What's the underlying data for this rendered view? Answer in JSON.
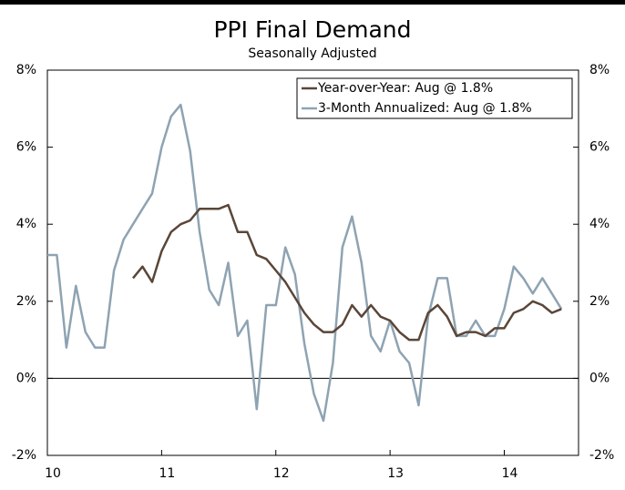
{
  "chart_data": {
    "type": "line",
    "title": "PPI Final Demand",
    "subtitle": "Seasonally Adjusted",
    "x": [
      10,
      10.083,
      10.167,
      10.25,
      10.333,
      10.417,
      10.5,
      10.583,
      10.667,
      10.75,
      10.833,
      10.917,
      11,
      11.083,
      11.167,
      11.25,
      11.333,
      11.417,
      11.5,
      11.583,
      11.667,
      11.75,
      11.833,
      11.917,
      12,
      12.083,
      12.167,
      12.25,
      12.333,
      12.417,
      12.5,
      12.583,
      12.667,
      12.75,
      12.833,
      12.917,
      13,
      13.083,
      13.167,
      13.25,
      13.333,
      13.417,
      13.5,
      13.583,
      13.667,
      13.75,
      13.833,
      13.917,
      14,
      14.083,
      14.167,
      14.25,
      14.333,
      14.417,
      14.5
    ],
    "series": [
      {
        "name": "Year-over-Year: Aug @ 1.8%",
        "color": "#5a4638",
        "values": [
          null,
          null,
          null,
          null,
          null,
          null,
          null,
          null,
          null,
          2.6,
          2.9,
          2.5,
          3.3,
          3.8,
          4.0,
          4.1,
          4.4,
          4.4,
          4.4,
          4.5,
          3.8,
          3.8,
          3.2,
          3.1,
          2.8,
          2.5,
          2.1,
          1.7,
          1.4,
          1.2,
          1.2,
          1.4,
          1.9,
          1.6,
          1.9,
          1.6,
          1.5,
          1.2,
          1.0,
          1.0,
          1.7,
          1.9,
          1.6,
          1.1,
          1.2,
          1.2,
          1.1,
          1.3,
          1.3,
          1.7,
          1.8,
          2.0,
          1.9,
          1.7,
          1.8
        ]
      },
      {
        "name": "3-Month Annualized: Aug @ 1.8%",
        "color": "#8ea3b2",
        "values": [
          3.2,
          3.2,
          0.8,
          2.4,
          1.2,
          0.8,
          0.8,
          2.8,
          3.6,
          4.0,
          4.4,
          4.8,
          6.0,
          6.8,
          7.1,
          5.9,
          3.8,
          2.3,
          1.9,
          3.0,
          1.1,
          1.5,
          -0.8,
          1.9,
          1.9,
          3.4,
          2.7,
          0.9,
          -0.4,
          -1.1,
          0.4,
          3.4,
          4.2,
          3.0,
          1.1,
          0.7,
          1.5,
          0.7,
          0.4,
          -0.7,
          1.6,
          2.6,
          2.6,
          1.1,
          1.1,
          1.5,
          1.1,
          1.1,
          1.8,
          2.9,
          2.6,
          2.2,
          2.6,
          2.2,
          1.8
        ]
      }
    ],
    "xlim": [
      10,
      14.65
    ],
    "xticks": [
      10,
      11,
      12,
      13,
      14
    ],
    "ylim": [
      -2,
      8
    ],
    "yticks": [
      {
        "value": -2,
        "label": "-2%"
      },
      {
        "value": 0,
        "label": "0%"
      },
      {
        "value": 2,
        "label": "2%"
      },
      {
        "value": 4,
        "label": "4%"
      },
      {
        "value": 6,
        "label": "6%"
      },
      {
        "value": 8,
        "label": "8%"
      }
    ],
    "legend": "upper right"
  }
}
